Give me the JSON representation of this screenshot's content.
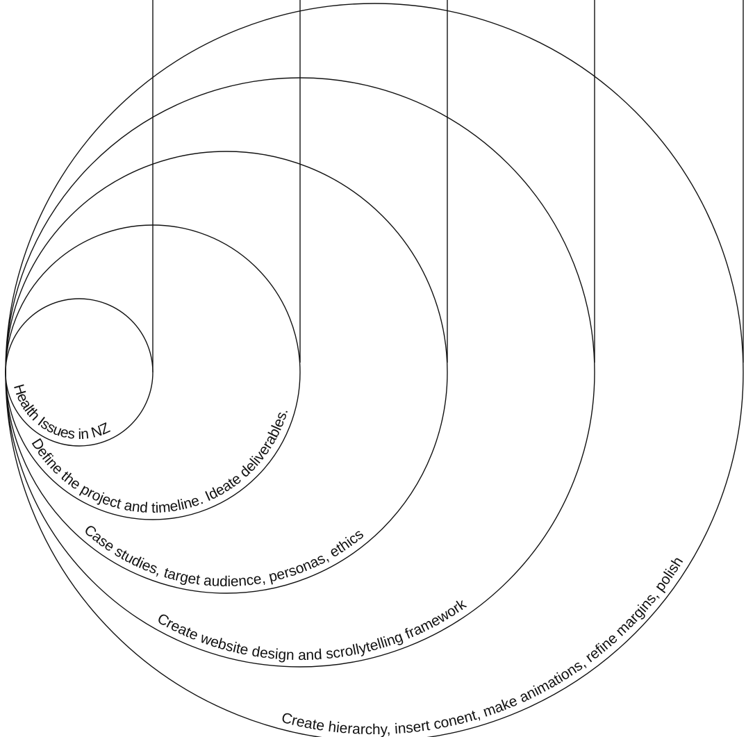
{
  "stages": [
    {
      "label": "Health Issues in NZ"
    },
    {
      "label": "Define the project and timeline. Ideate deliverables."
    },
    {
      "label": "Case studies, target audience, personas, ethics"
    },
    {
      "label": "Create website design and scrollytelling framework"
    },
    {
      "label": "Create hierarchy, insert conent, make animations, refine margins, polish"
    }
  ],
  "colors": {
    "line": "#111111",
    "text": "#111111",
    "background": "#ffffff"
  }
}
